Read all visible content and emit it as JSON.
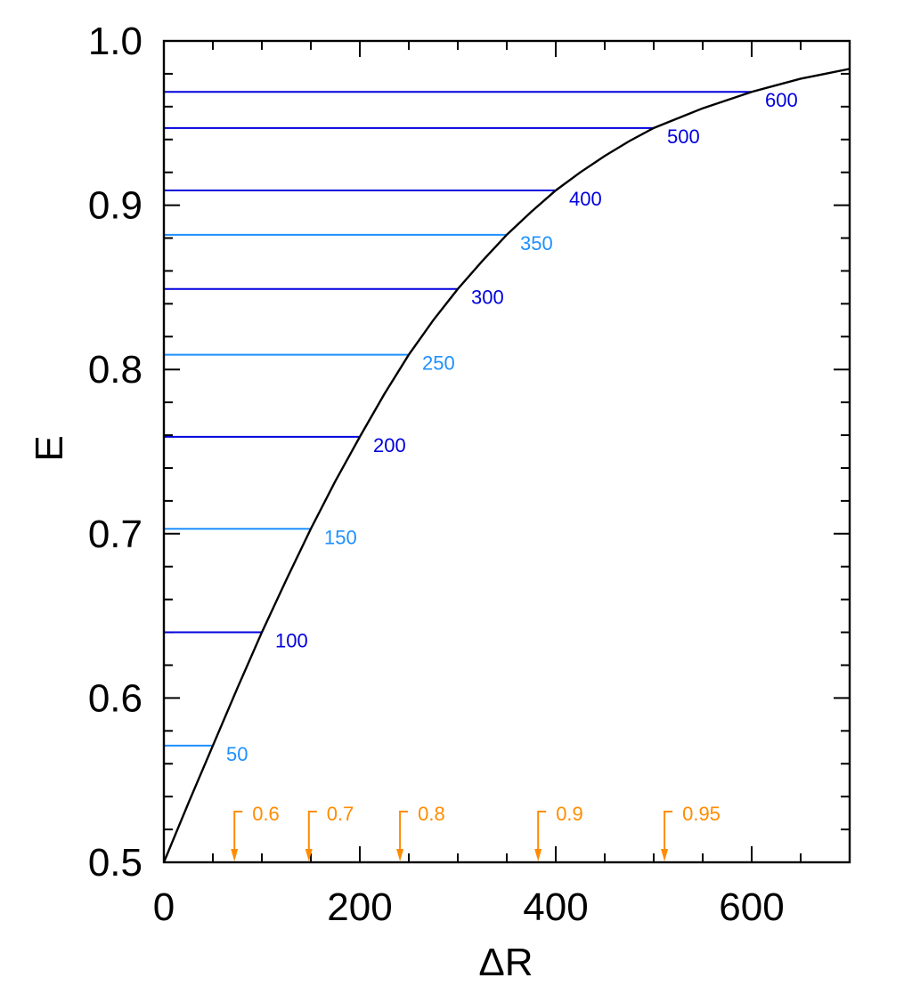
{
  "chart_data": {
    "type": "line",
    "title": "",
    "xlabel": "ΔR",
    "ylabel": "E",
    "xlim": [
      0,
      700
    ],
    "ylim": [
      0.5,
      1.0
    ],
    "x_ticks": [
      "0",
      "200",
      "400",
      "600"
    ],
    "y_ticks": [
      "0.5",
      "0.6",
      "0.7",
      "0.8",
      "0.9",
      "1.0"
    ],
    "x_tick_values": [
      0,
      200,
      400,
      600
    ],
    "y_tick_values": [
      0.5,
      0.6,
      0.7,
      0.8,
      0.9,
      1.0
    ],
    "grid": false,
    "curve": {
      "x": [
        0,
        25,
        50,
        75,
        100,
        125,
        150,
        175,
        200,
        225,
        250,
        275,
        300,
        325,
        350,
        375,
        400,
        425,
        450,
        475,
        500,
        525,
        550,
        575,
        600,
        625,
        650,
        675,
        700
      ],
      "y": [
        0.5,
        0.536,
        0.571,
        0.606,
        0.64,
        0.672,
        0.703,
        0.732,
        0.759,
        0.785,
        0.809,
        0.83,
        0.849,
        0.866,
        0.882,
        0.896,
        0.909,
        0.92,
        0.93,
        0.939,
        0.947,
        0.953,
        0.959,
        0.964,
        0.969,
        0.973,
        0.977,
        0.98,
        0.983
      ],
      "color": "#000000"
    },
    "annotations": [
      {
        "label": "50",
        "x": 50,
        "y": 0.571,
        "color": "#1e90ff"
      },
      {
        "label": "100",
        "x": 100,
        "y": 0.64,
        "color": "#0000dd"
      },
      {
        "label": "150",
        "x": 150,
        "y": 0.703,
        "color": "#1e90ff"
      },
      {
        "label": "200",
        "x": 200,
        "y": 0.759,
        "color": "#0000dd"
      },
      {
        "label": "250",
        "x": 250,
        "y": 0.809,
        "color": "#1e90ff"
      },
      {
        "label": "300",
        "x": 300,
        "y": 0.849,
        "color": "#0000dd"
      },
      {
        "label": "350",
        "x": 350,
        "y": 0.882,
        "color": "#1e90ff"
      },
      {
        "label": "400",
        "x": 400,
        "y": 0.909,
        "color": "#0000dd"
      },
      {
        "label": "500",
        "x": 500,
        "y": 0.947,
        "color": "#0000dd"
      },
      {
        "label": "600",
        "x": 600,
        "y": 0.969,
        "color": "#0000dd"
      }
    ],
    "markers": [
      {
        "label": "0.6",
        "x": 72,
        "color": "#ff8c00"
      },
      {
        "label": "0.7",
        "x": 148,
        "color": "#ff8c00"
      },
      {
        "label": "0.8",
        "x": 241,
        "color": "#ff8c00"
      },
      {
        "label": "0.9",
        "x": 382,
        "color": "#ff8c00"
      },
      {
        "label": "0.95",
        "x": 511,
        "color": "#ff8c00"
      }
    ]
  }
}
